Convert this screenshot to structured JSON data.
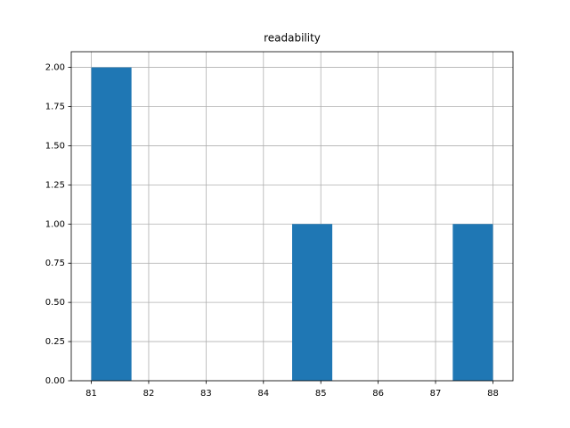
{
  "chart_data": {
    "type": "histogram",
    "title": "readability",
    "bins": [
      81,
      81.7,
      82.4,
      83.1,
      83.8,
      84.5,
      85.2,
      85.9,
      86.6,
      87.3,
      88
    ],
    "values": [
      2,
      0,
      0,
      0,
      0,
      1,
      0,
      0,
      0,
      1
    ],
    "color": "#1f77b4",
    "xlim": [
      80.65,
      88.35
    ],
    "xticks": [
      81,
      82,
      83,
      84,
      85,
      86,
      87,
      88
    ],
    "ylim": [
      0,
      2.1
    ],
    "yticks": [
      {
        "value": 0,
        "label": "0.00"
      },
      {
        "value": 0.25,
        "label": "0.25"
      },
      {
        "value": 0.5,
        "label": "0.50"
      },
      {
        "value": 0.75,
        "label": "0.75"
      },
      {
        "value": 1,
        "label": "1.00"
      },
      {
        "value": 1.25,
        "label": "1.25"
      },
      {
        "value": 1.5,
        "label": "1.50"
      },
      {
        "value": 1.75,
        "label": "1.75"
      },
      {
        "value": 2,
        "label": "2.00"
      }
    ],
    "grid": true
  }
}
